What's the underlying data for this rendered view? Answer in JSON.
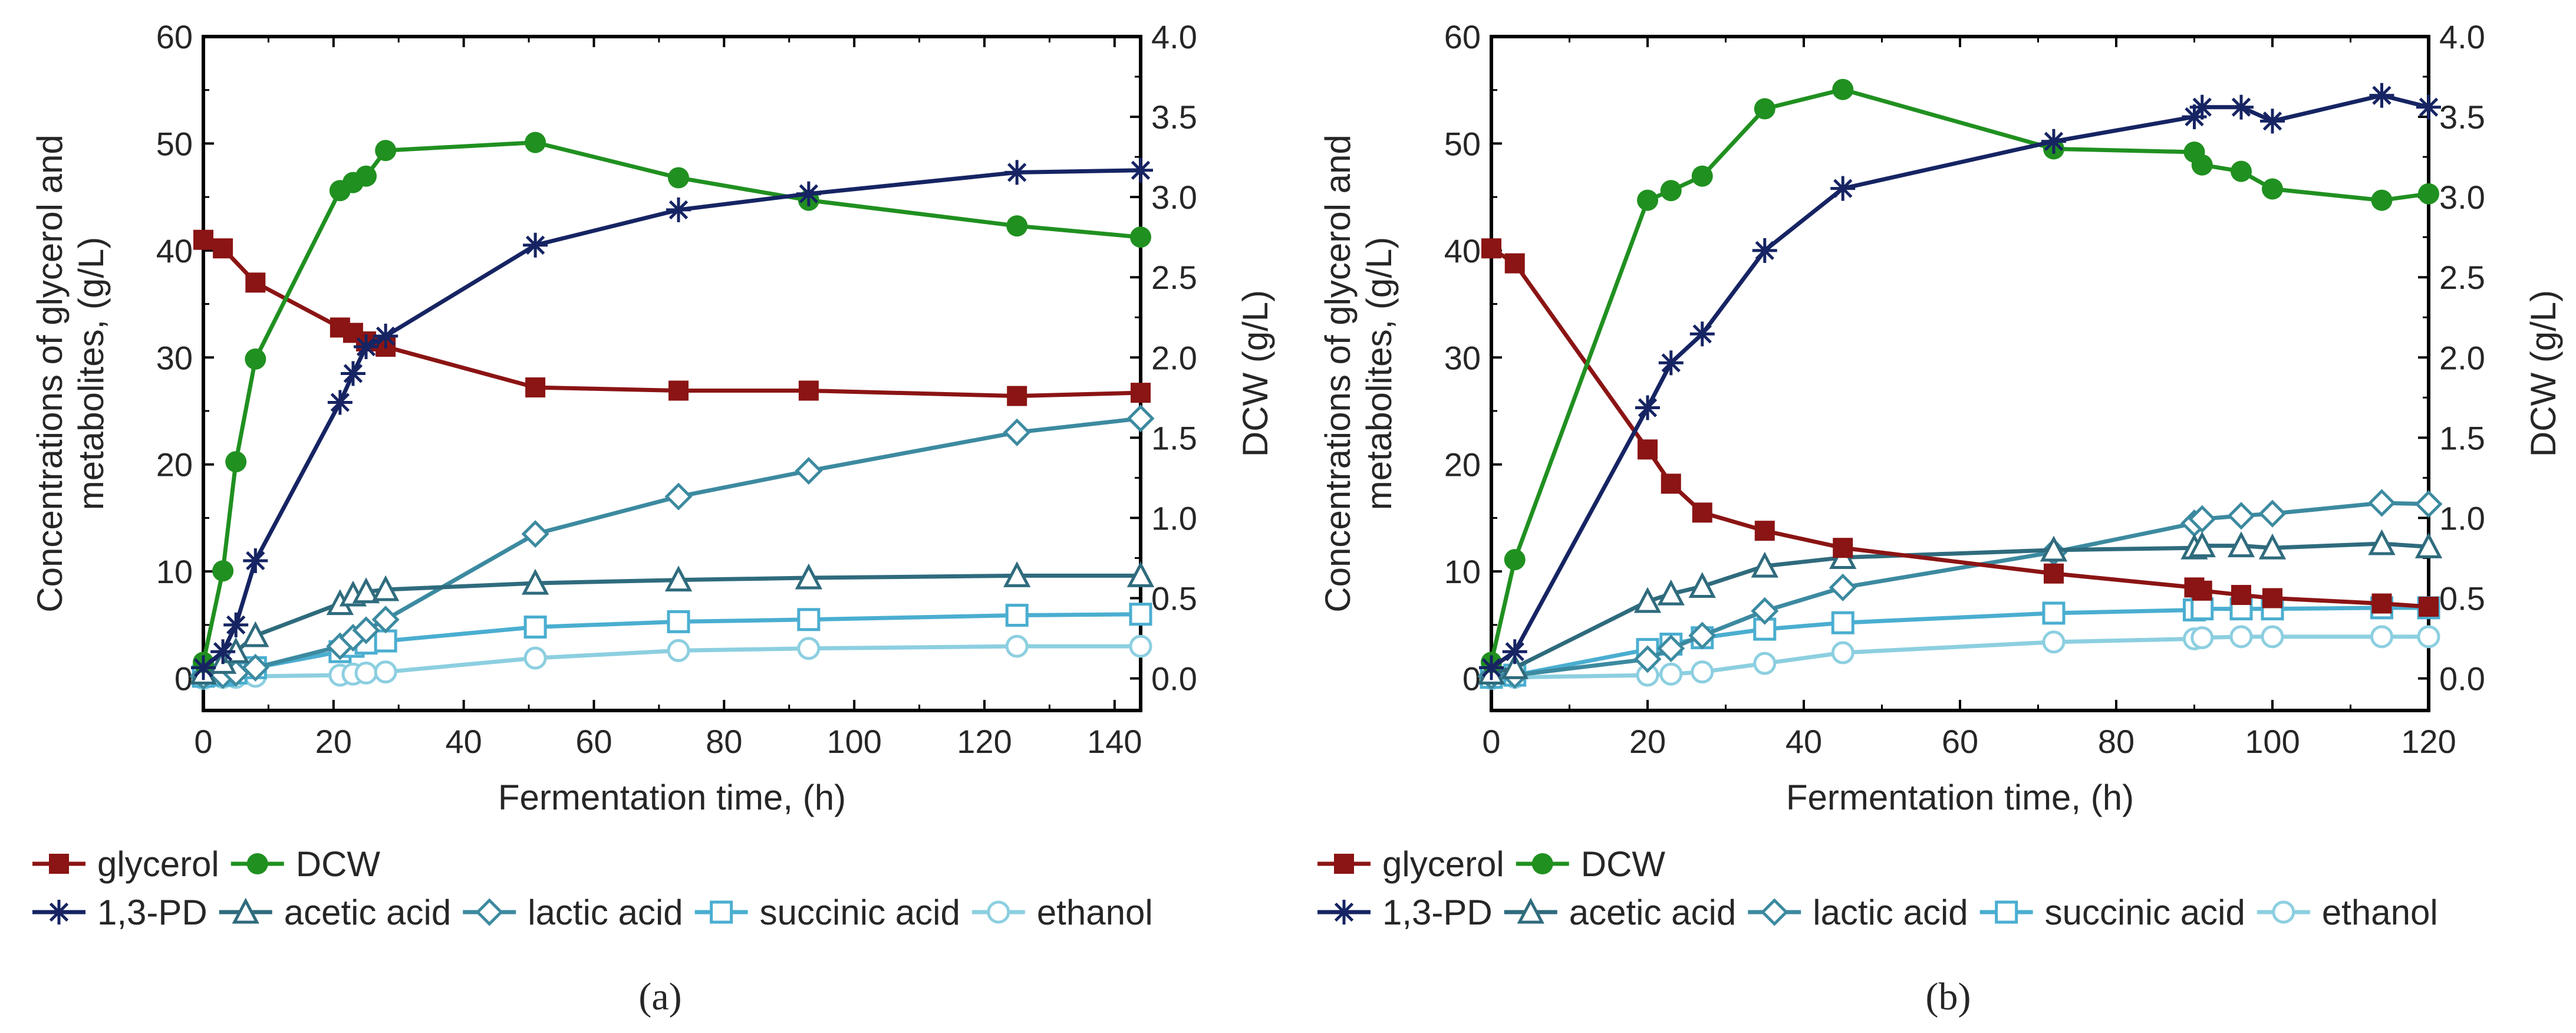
{
  "chart_data": [
    {
      "panel": "a",
      "panel_label": "(a)",
      "type": "line",
      "xlabel": "Fermentation time, (h)",
      "ylabel_left": "Concentrations of glycerol and metabolites, (g/L)",
      "ylabel_left_lines": [
        "Concentrations of glycerol and",
        "metabolites, (g/L)"
      ],
      "ylabel_right": "DCW (g/L)",
      "xlim": [
        0,
        144
      ],
      "xticks": [
        0,
        20,
        40,
        60,
        80,
        100,
        120,
        140
      ],
      "ylim_left": [
        -3,
        60
      ],
      "yticks_left": [
        0,
        10,
        20,
        30,
        40,
        50,
        60
      ],
      "ylim_right": [
        -0.2,
        4.0
      ],
      "yticks_right": [
        "0.0",
        "0.5",
        "1.0",
        "1.5",
        "2.0",
        "2.5",
        "3.0",
        "3.5",
        "4.0"
      ],
      "series": [
        {
          "name": "glycerol",
          "axis": "left",
          "color": "#8b1414",
          "marker": "square",
          "x": [
            0,
            3,
            8,
            21,
            23,
            25,
            28,
            51,
            73,
            93,
            125,
            144
          ],
          "y": [
            41.0,
            40.2,
            37.0,
            32.8,
            32.3,
            31.5,
            31.0,
            27.2,
            26.9,
            26.9,
            26.4,
            26.7
          ]
        },
        {
          "name": "DCW",
          "axis": "right",
          "color": "#209020",
          "marker": "circle",
          "x": [
            0,
            3,
            5,
            8,
            21,
            23,
            25,
            28,
            51,
            73,
            93,
            125,
            144
          ],
          "y": [
            0.1,
            0.67,
            1.35,
            1.99,
            3.04,
            3.09,
            3.13,
            3.29,
            3.34,
            3.12,
            2.98,
            2.82,
            2.75
          ]
        },
        {
          "name": "1,3-PD",
          "axis": "left",
          "color": "#162463",
          "marker": "asterisk",
          "x": [
            0,
            3,
            5,
            8,
            21,
            23,
            25,
            28,
            51,
            73,
            93,
            125,
            144
          ],
          "y": [
            1.0,
            2.5,
            5.0,
            11.0,
            25.8,
            28.5,
            31.0,
            32.0,
            40.5,
            43.8,
            45.3,
            47.3,
            47.5
          ]
        },
        {
          "name": "acetic acid",
          "axis": "left",
          "color": "#2f6b7d",
          "marker": "triangle",
          "x": [
            0,
            3,
            5,
            8,
            21,
            23,
            25,
            28,
            51,
            73,
            93,
            125,
            144
          ],
          "y": [
            0.5,
            1.5,
            2.5,
            4.0,
            7.0,
            7.8,
            8.1,
            8.3,
            8.9,
            9.2,
            9.4,
            9.6,
            9.6
          ]
        },
        {
          "name": "lactic acid",
          "axis": "left",
          "color": "#3c8aa0",
          "marker": "diamond",
          "x": [
            0,
            3,
            5,
            8,
            21,
            23,
            25,
            28,
            51,
            73,
            93,
            125,
            144
          ],
          "y": [
            0.2,
            0.3,
            0.5,
            1.0,
            3.0,
            3.8,
            4.5,
            5.5,
            13.5,
            17.0,
            19.4,
            23.0,
            24.3
          ]
        },
        {
          "name": "succinic acid",
          "axis": "left",
          "color": "#4aaed0",
          "marker": "square-open",
          "x": [
            0,
            3,
            5,
            8,
            21,
            23,
            25,
            28,
            51,
            73,
            93,
            125,
            144
          ],
          "y": [
            0.2,
            0.3,
            0.5,
            1.0,
            2.5,
            3.0,
            3.3,
            3.5,
            4.8,
            5.3,
            5.5,
            5.9,
            6.0
          ]
        },
        {
          "name": "ethanol",
          "axis": "left",
          "color": "#8ccfe0",
          "marker": "circle-open",
          "x": [
            0,
            3,
            5,
            8,
            21,
            23,
            25,
            28,
            51,
            73,
            93,
            125,
            144
          ],
          "y": [
            0.0,
            0.1,
            0.1,
            0.2,
            0.3,
            0.4,
            0.5,
            0.6,
            1.9,
            2.6,
            2.8,
            3.0,
            3.0
          ]
        }
      ]
    },
    {
      "panel": "b",
      "panel_label": "(b)",
      "type": "line",
      "xlabel": "Fermentation time, (h)",
      "ylabel_left": "Concentrations of glycerol and metabolites, (g/L)",
      "ylabel_left_lines": [
        "Concentrations of glycerol and",
        "metabolites, (g/L)"
      ],
      "ylabel_right": "DCW (g/L)",
      "xlim": [
        0,
        120
      ],
      "xticks": [
        0,
        20,
        40,
        60,
        80,
        100,
        120
      ],
      "ylim_left": [
        -3,
        60
      ],
      "yticks_left": [
        0,
        10,
        20,
        30,
        40,
        50,
        60
      ],
      "ylim_right": [
        -0.2,
        4.0
      ],
      "yticks_right": [
        "0.0",
        "0.5",
        "1.0",
        "1.5",
        "2.0",
        "2.5",
        "3.0",
        "3.5",
        "4.0"
      ],
      "series": [
        {
          "name": "glycerol",
          "axis": "left",
          "color": "#8b1414",
          "marker": "square",
          "x": [
            0,
            3,
            20,
            23,
            27,
            35,
            45,
            72,
            90,
            91,
            96,
            100,
            114,
            120
          ],
          "y": [
            40.2,
            38.8,
            21.4,
            18.2,
            15.5,
            13.8,
            12.2,
            9.8,
            8.5,
            8.2,
            7.8,
            7.5,
            7.0,
            6.7
          ]
        },
        {
          "name": "DCW",
          "axis": "right",
          "color": "#209020",
          "marker": "circle",
          "x": [
            0,
            3,
            20,
            23,
            27,
            35,
            45,
            72,
            90,
            91,
            96,
            100,
            114,
            120
          ],
          "y": [
            0.1,
            0.74,
            2.98,
            3.04,
            3.13,
            3.55,
            3.67,
            3.3,
            3.28,
            3.2,
            3.16,
            3.05,
            2.98,
            3.02
          ]
        },
        {
          "name": "1,3-PD",
          "axis": "left",
          "color": "#162463",
          "marker": "asterisk",
          "x": [
            0,
            3,
            20,
            23,
            27,
            35,
            45,
            72,
            90,
            91,
            96,
            100,
            114,
            120
          ],
          "y": [
            1.0,
            2.5,
            25.3,
            29.5,
            32.2,
            40.0,
            45.8,
            50.2,
            52.5,
            53.4,
            53.4,
            52.1,
            54.5,
            53.4
          ]
        },
        {
          "name": "acetic acid",
          "axis": "left",
          "color": "#2f6b7d",
          "marker": "triangle",
          "x": [
            0,
            3,
            20,
            23,
            27,
            35,
            45,
            72,
            90,
            91,
            96,
            100,
            114,
            120
          ],
          "y": [
            0.5,
            1.0,
            7.2,
            7.9,
            8.6,
            10.5,
            11.3,
            12.0,
            12.2,
            12.4,
            12.4,
            12.2,
            12.6,
            12.3
          ]
        },
        {
          "name": "lactic acid",
          "axis": "left",
          "color": "#3c8aa0",
          "marker": "diamond",
          "x": [
            0,
            3,
            20,
            23,
            27,
            35,
            45,
            72,
            90,
            91,
            96,
            100,
            114,
            120
          ],
          "y": [
            0.2,
            0.3,
            1.8,
            2.8,
            4.0,
            6.3,
            8.5,
            11.8,
            14.5,
            14.9,
            15.2,
            15.4,
            16.4,
            16.3
          ]
        },
        {
          "name": "succinic acid",
          "axis": "left",
          "color": "#4aaed0",
          "marker": "square-open",
          "x": [
            0,
            3,
            20,
            23,
            27,
            35,
            45,
            72,
            90,
            91,
            96,
            100,
            114,
            120
          ],
          "y": [
            0.1,
            0.3,
            2.7,
            3.2,
            3.8,
            4.6,
            5.2,
            6.1,
            6.4,
            6.5,
            6.5,
            6.5,
            6.6,
            6.6
          ]
        },
        {
          "name": "ethanol",
          "axis": "left",
          "color": "#8ccfe0",
          "marker": "circle-open",
          "x": [
            0,
            3,
            20,
            23,
            27,
            35,
            45,
            72,
            90,
            91,
            96,
            100,
            114,
            120
          ],
          "y": [
            0.0,
            0.1,
            0.3,
            0.4,
            0.6,
            1.4,
            2.4,
            3.4,
            3.7,
            3.8,
            3.9,
            3.9,
            3.9,
            3.9
          ]
        }
      ]
    }
  ],
  "legend": {
    "row1": [
      "glycerol",
      "DCW"
    ],
    "row2": [
      "1,3-PD",
      "acetic acid",
      "lactic acid",
      "succinic acid",
      "ethanol"
    ]
  }
}
